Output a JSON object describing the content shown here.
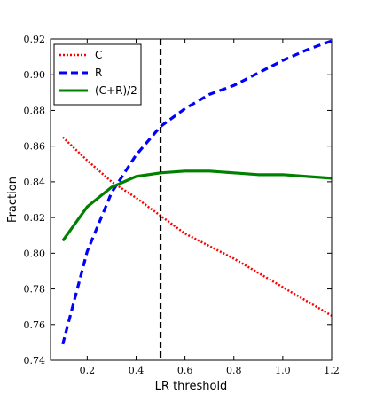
{
  "chart_data": {
    "type": "line",
    "title": "",
    "xlabel": "LR threshold",
    "ylabel": "Fraction",
    "xlim": [
      0.05,
      1.2
    ],
    "ylim": [
      0.74,
      0.92
    ],
    "xticks": [
      0.2,
      0.4,
      0.6,
      0.8,
      1.0,
      1.2
    ],
    "xtick_labels": [
      "0.2",
      "0.4",
      "0.6",
      "0.8",
      "1.0",
      "1.2"
    ],
    "yticks": [
      0.74,
      0.76,
      0.78,
      0.8,
      0.82,
      0.84,
      0.86,
      0.88,
      0.9,
      0.92
    ],
    "ytick_labels": [
      "0.74",
      "0.76",
      "0.78",
      "0.80",
      "0.82",
      "0.84",
      "0.86",
      "0.88",
      "0.90",
      "0.92"
    ],
    "grid": false,
    "legend_position": "top-left",
    "vertical_line": {
      "x": 0.5,
      "color": "#000000",
      "style": "dashed"
    },
    "series": [
      {
        "name": "C",
        "color": "#ff0000",
        "style": "dotted",
        "x": [
          0.1,
          0.2,
          0.3,
          0.4,
          0.5,
          0.6,
          0.7,
          0.8,
          0.9,
          1.0,
          1.1,
          1.2
        ],
        "y": [
          0.865,
          0.852,
          0.84,
          0.831,
          0.821,
          0.811,
          0.804,
          0.797,
          0.789,
          0.781,
          0.773,
          0.765
        ]
      },
      {
        "name": "R",
        "color": "#0000ff",
        "style": "dashed",
        "x": [
          0.1,
          0.2,
          0.3,
          0.4,
          0.5,
          0.6,
          0.7,
          0.8,
          0.9,
          1.0,
          1.1,
          1.2
        ],
        "y": [
          0.749,
          0.801,
          0.834,
          0.855,
          0.871,
          0.881,
          0.889,
          0.894,
          0.901,
          0.908,
          0.914,
          0.919
        ]
      },
      {
        "name": "(C+R)/2",
        "color": "#008000",
        "style": "solid",
        "x": [
          0.1,
          0.2,
          0.3,
          0.4,
          0.5,
          0.6,
          0.7,
          0.8,
          0.9,
          1.0,
          1.1,
          1.2
        ],
        "y": [
          0.807,
          0.826,
          0.837,
          0.843,
          0.845,
          0.846,
          0.846,
          0.845,
          0.844,
          0.844,
          0.843,
          0.842
        ]
      }
    ]
  }
}
